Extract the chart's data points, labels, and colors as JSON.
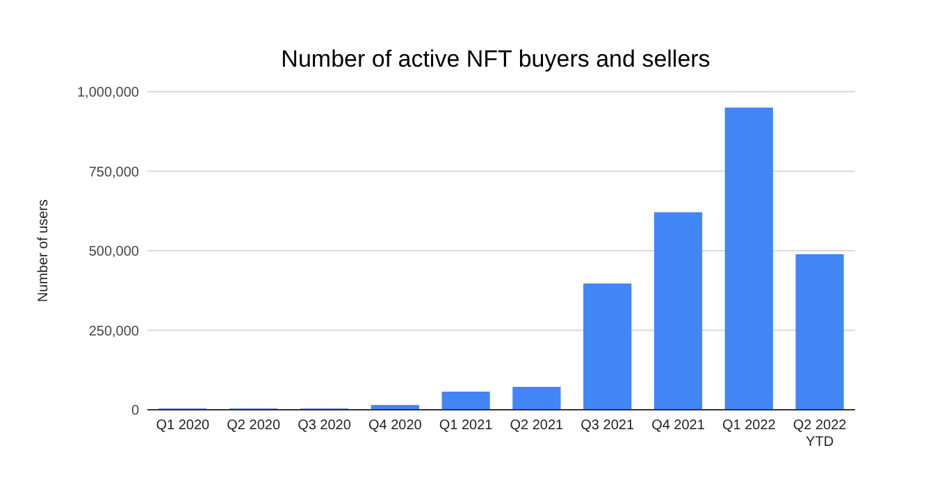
{
  "chart_data": {
    "type": "bar",
    "title": "Number of active NFT buyers and sellers",
    "ylabel": "Number of users",
    "categories": [
      "Q1 2020",
      "Q2 2020",
      "Q3 2020",
      "Q4 2020",
      "Q1 2021",
      "Q2 2021",
      "Q3 2021",
      "Q4 2021",
      "Q1 2022",
      "Q2 2022 YTD"
    ],
    "values": [
      4000,
      4000,
      4000,
      15000,
      57000,
      72000,
      397000,
      621000,
      950000,
      489000
    ],
    "color": "#4285f4",
    "ylim": [
      0,
      1000000
    ],
    "yticks": [
      {
        "value": 0,
        "label": "0"
      },
      {
        "value": 250000,
        "label": "250,000"
      },
      {
        "value": 500000,
        "label": "500,000"
      },
      {
        "value": 750000,
        "label": "750,000"
      },
      {
        "value": 1000000,
        "label": "1,000,000"
      }
    ],
    "grid": "y"
  }
}
